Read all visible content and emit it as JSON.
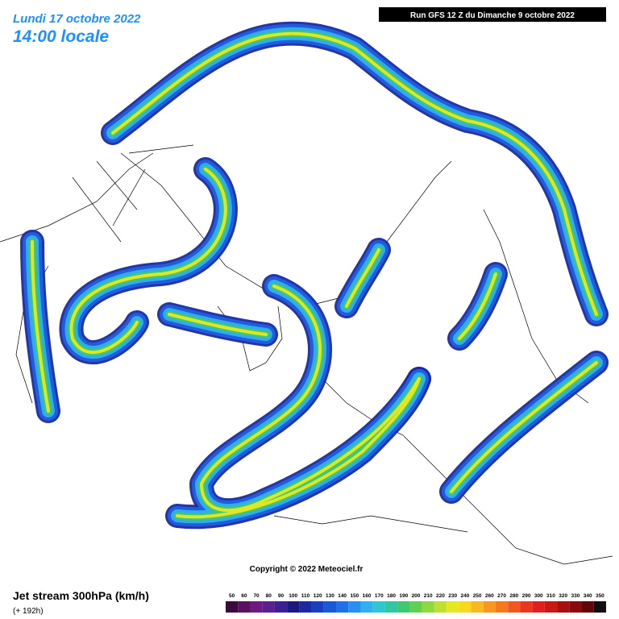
{
  "header": {
    "date": "Lundi 17 octobre 2022",
    "time": "14:00 locale",
    "run": "Run GFS 12 Z du Dimanche 9 octobre 2022"
  },
  "copyright": "Copyright © 2022 Meteociel.fr",
  "legend": {
    "title": "Jet stream 300hPa (km/h)",
    "lead": "(+ 192h)",
    "scale": [
      {
        "label": 50,
        "color": "#3c0a3c"
      },
      {
        "label": 60,
        "color": "#5a1060"
      },
      {
        "label": 70,
        "color": "#6e1a80"
      },
      {
        "label": 80,
        "color": "#5a2090"
      },
      {
        "label": 90,
        "color": "#3a2090"
      },
      {
        "label": 100,
        "color": "#1a1a80"
      },
      {
        "label": 110,
        "color": "#1a2aa0"
      },
      {
        "label": 120,
        "color": "#1a40c0"
      },
      {
        "label": 130,
        "color": "#1a58d8"
      },
      {
        "label": 140,
        "color": "#2070e8"
      },
      {
        "label": 150,
        "color": "#2890f0"
      },
      {
        "label": 160,
        "color": "#30b0f0"
      },
      {
        "label": 170,
        "color": "#30c8d0"
      },
      {
        "label": 180,
        "color": "#30c8a0"
      },
      {
        "label": 190,
        "color": "#40c870"
      },
      {
        "label": 200,
        "color": "#60d050"
      },
      {
        "label": 210,
        "color": "#90d840"
      },
      {
        "label": 220,
        "color": "#c0e030"
      },
      {
        "label": 230,
        "color": "#e8e820"
      },
      {
        "label": 240,
        "color": "#f8d820"
      },
      {
        "label": 250,
        "color": "#f8b820"
      },
      {
        "label": 260,
        "color": "#f89820"
      },
      {
        "label": 270,
        "color": "#f87820"
      },
      {
        "label": 280,
        "color": "#f05820"
      },
      {
        "label": 290,
        "color": "#e83820"
      },
      {
        "label": 300,
        "color": "#e02020"
      },
      {
        "label": 310,
        "color": "#c81818"
      },
      {
        "label": 320,
        "color": "#a81010"
      },
      {
        "label": 330,
        "color": "#880c0c"
      },
      {
        "label": 340,
        "color": "#600808"
      },
      {
        "label": 350,
        "color": "#101010"
      }
    ]
  }
}
